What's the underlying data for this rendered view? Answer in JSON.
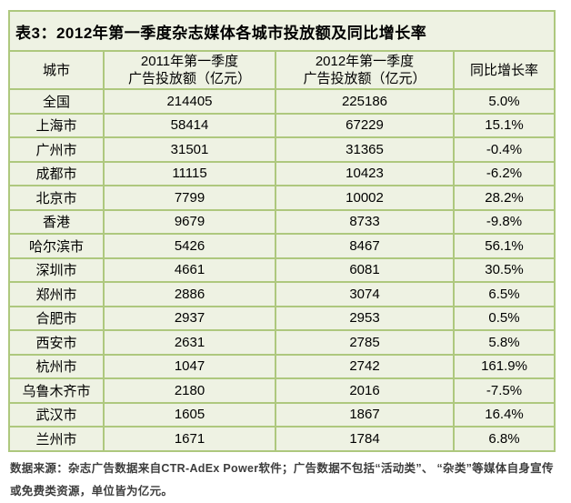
{
  "panel": {
    "title": "表3：2012年第一季度杂志媒体各城市投放额及同比增长率"
  },
  "table": {
    "headers": [
      {
        "line1": "城市",
        "line2": ""
      },
      {
        "line1": "2011年第一季度",
        "line2": "广告投放额（亿元）"
      },
      {
        "line1": "2012年第一季度",
        "line2": "广告投放额（亿元）"
      },
      {
        "line1": "同比增长率",
        "line2": ""
      }
    ],
    "rows": [
      {
        "city": "全国",
        "y2011": "214405",
        "y2012": "225186",
        "growth": "5.0%"
      },
      {
        "city": "上海市",
        "y2011": "58414",
        "y2012": "67229",
        "growth": "15.1%"
      },
      {
        "city": "广州市",
        "y2011": "31501",
        "y2012": "31365",
        "growth": "-0.4%"
      },
      {
        "city": "成都市",
        "y2011": "11115",
        "y2012": "10423",
        "growth": "-6.2%"
      },
      {
        "city": "北京市",
        "y2011": "7799",
        "y2012": "10002",
        "growth": "28.2%"
      },
      {
        "city": "香港",
        "y2011": "9679",
        "y2012": "8733",
        "growth": "-9.8%"
      },
      {
        "city": "哈尔滨市",
        "y2011": "5426",
        "y2012": "8467",
        "growth": "56.1%"
      },
      {
        "city": "深圳市",
        "y2011": "4661",
        "y2012": "6081",
        "growth": "30.5%"
      },
      {
        "city": "郑州市",
        "y2011": "2886",
        "y2012": "3074",
        "growth": "6.5%"
      },
      {
        "city": "合肥市",
        "y2011": "2937",
        "y2012": "2953",
        "growth": "0.5%"
      },
      {
        "city": "西安市",
        "y2011": "2631",
        "y2012": "2785",
        "growth": "5.8%"
      },
      {
        "city": "杭州市",
        "y2011": "1047",
        "y2012": "2742",
        "growth": "161.9%"
      },
      {
        "city": "乌鲁木齐市",
        "y2011": "2180",
        "y2012": "2016",
        "growth": "-7.5%"
      },
      {
        "city": "武汉市",
        "y2011": "1605",
        "y2012": "1867",
        "growth": "16.4%"
      },
      {
        "city": "兰州市",
        "y2011": "1671",
        "y2012": "1784",
        "growth": "6.8%"
      }
    ]
  },
  "source_note": {
    "line1": "数据来源：杂志广告数据来自CTR-AdEx Power软件；广告数据不包括“活动类”、 “杂类”等媒体自身宣传",
    "line2": "或免费类资源，单位皆为亿元。"
  },
  "colors": {
    "page_bg": "#ffffff",
    "panel_bg": "#eef2e3",
    "line": "#aec87e",
    "text": "#000000",
    "note_text": "#3d3d3d"
  },
  "chart_data": {
    "type": "table",
    "title": "表3：2012年第一季度杂志媒体各城市投放额及同比增长率",
    "categories": [
      "全国",
      "上海市",
      "广州市",
      "成都市",
      "北京市",
      "香港",
      "哈尔滨市",
      "深圳市",
      "郑州市",
      "合肥市",
      "西安市",
      "杭州市",
      "乌鲁木齐市",
      "武汉市",
      "兰州市"
    ],
    "series": [
      {
        "name": "2011年第一季度广告投放额（亿元）",
        "values": [
          214405,
          58414,
          31501,
          11115,
          7799,
          9679,
          5426,
          4661,
          2886,
          2937,
          2631,
          1047,
          2180,
          1605,
          1671
        ]
      },
      {
        "name": "2012年第一季度广告投放额（亿元）",
        "values": [
          225186,
          67229,
          31365,
          10423,
          10002,
          8733,
          8467,
          6081,
          3074,
          2953,
          2785,
          2742,
          2016,
          1867,
          1784
        ]
      },
      {
        "name": "同比增长率",
        "values": [
          "5.0%",
          "15.1%",
          "-0.4%",
          "-6.2%",
          "28.2%",
          "-9.8%",
          "56.1%",
          "30.5%",
          "6.5%",
          "0.5%",
          "5.8%",
          "161.9%",
          "-7.5%",
          "16.4%",
          "6.8%"
        ]
      }
    ]
  }
}
